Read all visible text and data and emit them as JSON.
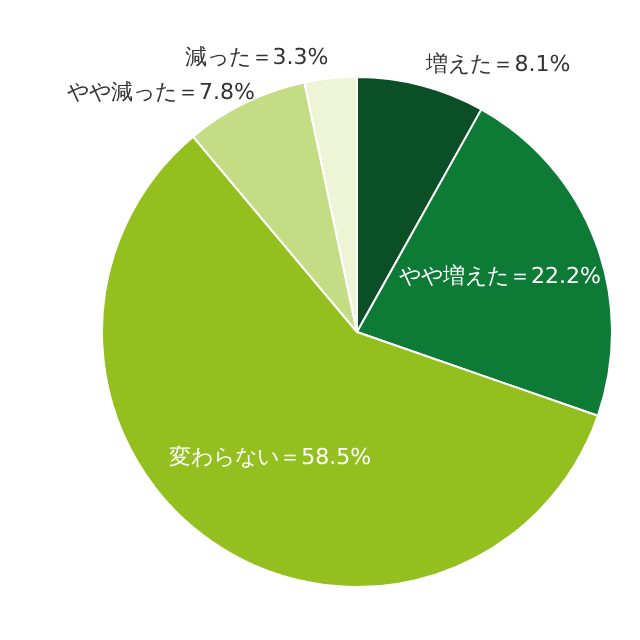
{
  "chart_data": {
    "type": "pie",
    "categories": [
      "増えた＝8.1%",
      "やや増えた＝22.2%",
      "変わらない＝58.5%",
      "やや減った＝7.8%",
      "減った＝3.3%"
    ],
    "values": [
      8.1,
      22.2,
      58.5,
      7.8,
      3.3
    ],
    "colors": [
      "#0b4f26",
      "#0d7a35",
      "#93c01f",
      "#c4dd85",
      "#eef5d6"
    ]
  }
}
